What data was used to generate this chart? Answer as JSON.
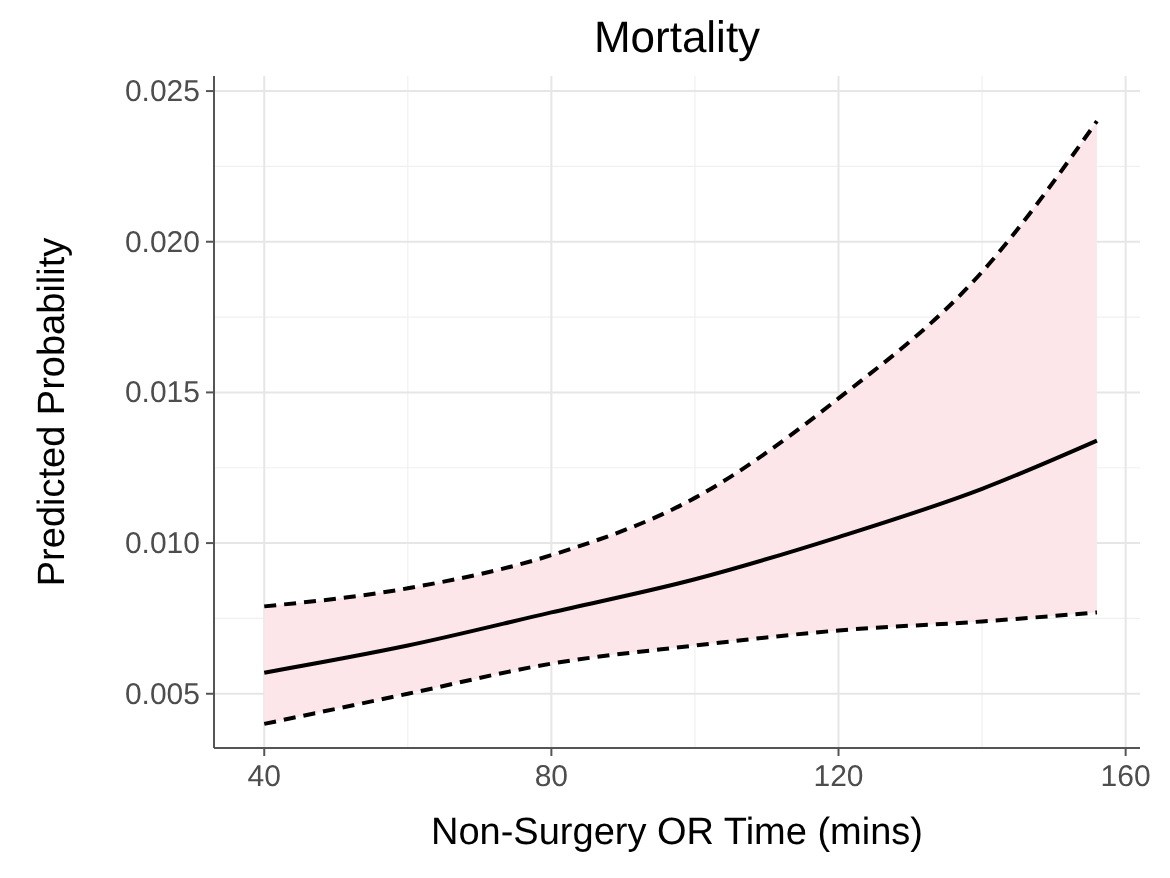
{
  "chart_data": {
    "type": "line",
    "title": "Mortality",
    "xlabel": "Non-Surgery OR Time (mins)",
    "ylabel": "Predicted Probability",
    "x": [
      40,
      60,
      80,
      100,
      120,
      140,
      156
    ],
    "series": [
      {
        "color": "#000000",
        "values": [
          0.0057,
          0.0066,
          0.0077,
          0.0088,
          0.0102,
          0.0118,
          0.0134
        ],
        "lower": [
          0.004,
          0.005,
          0.006,
          0.0066,
          0.0071,
          0.0074,
          0.0077
        ],
        "upper": [
          0.0079,
          0.0085,
          0.0096,
          0.0115,
          0.0148,
          0.019,
          0.024
        ]
      },
      {
        "color": "#000000",
        "line_style": "dashed",
        "values": [
          0.0079,
          0.0085,
          0.0096,
          0.0115,
          0.0148,
          0.019,
          0.024
        ]
      },
      {
        "color": "#000000",
        "line_style": "dashed",
        "values": [
          0.004,
          0.005,
          0.006,
          0.0066,
          0.0071,
          0.0074,
          0.0077
        ]
      }
    ],
    "xlim": [
      33,
      162
    ],
    "xticks": [
      40,
      80,
      120,
      160
    ],
    "ylim": [
      0.0032,
      0.0255
    ],
    "yticks": [
      0.005,
      {
        "value": 0.01,
        "label": "0.010"
      },
      0.015,
      {
        "value": 0.02,
        "label": "0.020"
      },
      0.025
    ],
    "grid": true,
    "line_style": "solid"
  }
}
